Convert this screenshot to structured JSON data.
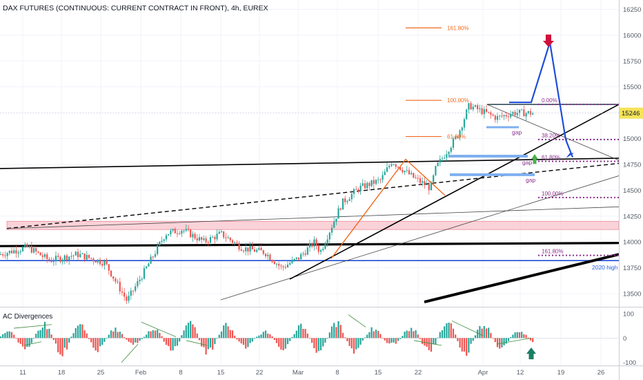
{
  "header": {
    "title": "DAX FUTURES (CONTINUOUS: CURRENT CONTRACT IN FRONT), 4h, EUREX"
  },
  "indicator": {
    "title": "AC Divergences"
  },
  "colors": {
    "up": "#26a69a",
    "down": "#ef5350",
    "blue": "#1e4dd8",
    "lightblue": "#7fb0f0",
    "orange": "#f06a1e",
    "purple": "#8b2e8b",
    "pink": "#f8c4cc",
    "price_tag": "#f5e35a",
    "up_arrow_green": "#4caf50",
    "teal_arrow": "#1a7f64",
    "red_arrow": "#d0103a"
  },
  "chart_data": [
    {
      "type": "candlestick",
      "title": "DAX FUTURES (CONTINUOUS: CURRENT CONTRACT IN FRONT), 4h, EUREX",
      "timeframe": "4h",
      "y_ticks": [
        16250,
        16000,
        15750,
        15500,
        15250,
        15000,
        14750,
        14500,
        14250,
        14000,
        13750,
        13500
      ],
      "ylim": [
        13380,
        16340
      ],
      "x_ticks": [
        "11",
        "18",
        "25",
        "Feb",
        "8",
        "15",
        "22",
        "Mar",
        "8",
        "15",
        "22",
        "Apr",
        "12",
        "19",
        "26"
      ],
      "last_price": "15246",
      "approx_close_path": [
        {
          "x": "2021-01-06",
          "y": 13880
        },
        {
          "x": "2021-01-11",
          "y": 13950
        },
        {
          "x": "2021-01-15",
          "y": 13820
        },
        {
          "x": "2021-01-20",
          "y": 13880
        },
        {
          "x": "2021-01-25",
          "y": 13800
        },
        {
          "x": "2021-01-29",
          "y": 13430
        },
        {
          "x": "2021-02-01",
          "y": 13700
        },
        {
          "x": "2021-02-05",
          "y": 14080
        },
        {
          "x": "2021-02-08",
          "y": 14120
        },
        {
          "x": "2021-02-12",
          "y": 14000
        },
        {
          "x": "2021-02-15",
          "y": 14080
        },
        {
          "x": "2021-02-19",
          "y": 13940
        },
        {
          "x": "2021-02-23",
          "y": 13900
        },
        {
          "x": "2021-02-26",
          "y": 13750
        },
        {
          "x": "2021-03-01",
          "y": 13840
        },
        {
          "x": "2021-03-04",
          "y": 14000
        },
        {
          "x": "2021-03-05",
          "y": 13900
        },
        {
          "x": "2021-03-09",
          "y": 14380
        },
        {
          "x": "2021-03-12",
          "y": 14520
        },
        {
          "x": "2021-03-16",
          "y": 14600
        },
        {
          "x": "2021-03-18",
          "y": 14780
        },
        {
          "x": "2021-03-22",
          "y": 14620
        },
        {
          "x": "2021-03-25",
          "y": 14520
        },
        {
          "x": "2021-03-26",
          "y": 14720
        },
        {
          "x": "2021-03-30",
          "y": 15040
        },
        {
          "x": "2021-04-01",
          "y": 15320
        },
        {
          "x": "2021-04-06",
          "y": 15200
        },
        {
          "x": "2021-04-09",
          "y": 15250
        },
        {
          "x": "2021-04-13",
          "y": 15246
        }
      ],
      "annotations": {
        "fib_upper": [
          {
            "label": "161.80%",
            "level": 16070
          },
          {
            "label": "100.00%",
            "level": 15370
          },
          {
            "label": "61.80%",
            "level": 15020
          }
        ],
        "fib_lower": [
          {
            "label": "0.00%",
            "level": 15330
          },
          {
            "label": "38.20%",
            "level": 14990
          },
          {
            "label": "61.80%",
            "level": 14780
          },
          {
            "label": "100.00%",
            "level": 14430
          },
          {
            "label": "161.80%",
            "level": 13870
          }
        ],
        "gap_labels": [
          "gap",
          "gap",
          "gap"
        ],
        "level_labels": {
          "2020_high": "2020 high"
        }
      }
    },
    {
      "type": "bar",
      "title": "AC Divergences",
      "y_ticks": [
        100,
        0,
        -100
      ],
      "ylim": [
        -112,
        122
      ]
    }
  ]
}
